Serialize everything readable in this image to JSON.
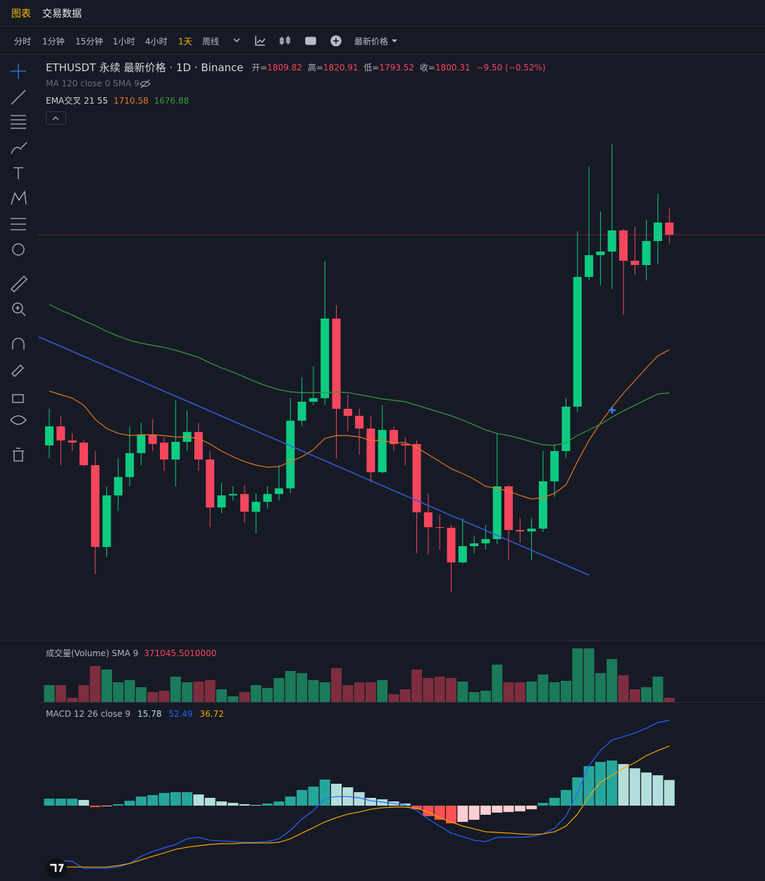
{
  "ui": {
    "tabs": [
      "图表",
      "交易数据"
    ],
    "intervals": [
      "分时",
      "1分钟",
      "15分钟",
      "1小时",
      "4小时",
      "1天",
      "周线"
    ],
    "price_type": "最新价格"
  },
  "chart_data": [
    {
      "type": "candlestick",
      "title": "ETHUSDT 永续 最新价格 · 1D · Binance",
      "ohlc_labels": [
        "开=",
        "高=",
        "低=",
        "收="
      ],
      "change": "−9.50 (−0.52%)",
      "indicator": "MA 120 close 0 SMA 9",
      "overlay_title": "EMA交叉 21 55",
      "up_color": "#0ecb81",
      "down_color": "#f6465d",
      "ylim": [
        1484.1,
        1939.5
      ],
      "last_price_line": true,
      "open": [
        1635.9,
        1650.8,
        1639.8,
        1638.1,
        1620.5,
        1556.7,
        1596.9,
        1611.2,
        1629.9,
        1644.2,
        1638.1,
        1624.9,
        1638.7,
        1646.4,
        1624.9,
        1587.5,
        1596.9,
        1598.0,
        1584.2,
        1591.9,
        1598.0,
        1602.4,
        1655.2,
        1670.0,
        1672.8,
        1734.9,
        1664.5,
        1659.0,
        1649.1,
        1615.0,
        1648.0,
        1637.0,
        1637.0,
        1583.7,
        1572.1,
        1571.6,
        1544.6,
        1557.3,
        1559.5,
        1562.8,
        1604.0,
        1569.9,
        1568.8,
        1571.0,
        1607.9,
        1631.5,
        1666.2,
        1767.4,
        1784.4,
        1787.2,
        1803.7,
        1780.0,
        1776.7,
        1795.4,
        1809.82
      ],
      "high": [
        1664.5,
        1659.0,
        1645.3,
        1639.8,
        1631.5,
        1604.0,
        1626.0,
        1650.8,
        1653.5,
        1656.3,
        1642.5,
        1671.1,
        1663.4,
        1653.5,
        1631.5,
        1606.8,
        1604.0,
        1605.1,
        1598.5,
        1604.0,
        1620.5,
        1672.8,
        1689.3,
        1697.5,
        1780.0,
        1745.4,
        1675.5,
        1664.5,
        1659.0,
        1667.3,
        1650.8,
        1642.5,
        1639.8,
        1598.5,
        1582.0,
        1573.8,
        1579.3,
        1565.5,
        1573.8,
        1645.3,
        1605.1,
        1579.3,
        1579.3,
        1631.5,
        1637.0,
        1672.8,
        1803.1,
        1853.2,
        1818.5,
        1870.8,
        1804.8,
        1806.4,
        1811.9,
        1832.3,
        1820.91
      ],
      "low": [
        1626.0,
        1620.5,
        1631.5,
        1619.4,
        1535.3,
        1549.0,
        1584.8,
        1604.0,
        1620.5,
        1631.5,
        1616.1,
        1604.0,
        1631.5,
        1616.1,
        1572.1,
        1583.1,
        1593.0,
        1575.4,
        1567.2,
        1586.4,
        1593.0,
        1598.5,
        1650.8,
        1667.3,
        1667.3,
        1626.0,
        1646.9,
        1628.8,
        1606.8,
        1613.9,
        1631.5,
        1620.5,
        1551.8,
        1550.7,
        1554.5,
        1521.5,
        1543.5,
        1551.8,
        1554.5,
        1558.9,
        1546.3,
        1560.0,
        1546.3,
        1568.3,
        1595.8,
        1626.0,
        1661.8,
        1764.6,
        1760.8,
        1758.0,
        1737.7,
        1769.0,
        1764.6,
        1777.3,
        1793.52
      ],
      "close": [
        1650.8,
        1639.8,
        1638.1,
        1620.5,
        1556.7,
        1596.9,
        1611.2,
        1629.9,
        1644.2,
        1637.0,
        1624.9,
        1638.7,
        1646.4,
        1624.9,
        1587.5,
        1596.9,
        1598.0,
        1584.2,
        1591.9,
        1598.0,
        1602.4,
        1655.2,
        1670.0,
        1672.8,
        1734.9,
        1664.5,
        1659.0,
        1649.1,
        1615.0,
        1648.0,
        1637.0,
        1635.9,
        1583.7,
        1572.1,
        1571.6,
        1544.6,
        1557.3,
        1559.5,
        1562.8,
        1604.0,
        1569.9,
        1568.8,
        1571.0,
        1607.9,
        1631.5,
        1666.2,
        1767.4,
        1784.4,
        1787.2,
        1803.7,
        1780.0,
        1776.7,
        1795.4,
        1809.8,
        1800.31
      ],
      "series": [
        {
          "color": "#e8771f",
          "values": [
            1678.3,
            1675.5,
            1672.8,
            1667.3,
            1656.3,
            1649.1,
            1645.3,
            1643.6,
            1644.2,
            1644.2,
            1643.6,
            1642.5,
            1642.5,
            1641.4,
            1637.0,
            1631.5,
            1627.1,
            1623.3,
            1620.5,
            1618.9,
            1619.4,
            1623.3,
            1627.1,
            1632.6,
            1641.4,
            1643.6,
            1643.6,
            1642.5,
            1639.8,
            1639.8,
            1638.1,
            1638.1,
            1634.3,
            1628.8,
            1623.3,
            1617.8,
            1613.9,
            1609.5,
            1604.0,
            1602.4,
            1600.2,
            1596.9,
            1594.1,
            1595.2,
            1598.5,
            1605.1,
            1623.3,
            1639.8,
            1653.5,
            1665.6,
            1676.6,
            1686.5,
            1696.4,
            1705.8,
            1710.58
          ]
        },
        {
          "color": "#3c9a44",
          "values": [
            1745.9,
            1741.5,
            1737.7,
            1733.3,
            1729.4,
            1725.0,
            1721.2,
            1717.9,
            1715.7,
            1714.0,
            1712.4,
            1710.2,
            1707.4,
            1704.7,
            1700.3,
            1696.4,
            1693.1,
            1689.3,
            1685.4,
            1682.1,
            1679.4,
            1677.7,
            1677.1,
            1677.1,
            1677.1,
            1677.7,
            1677.1,
            1675.5,
            1673.9,
            1672.2,
            1671.1,
            1670.0,
            1667.3,
            1664.5,
            1661.8,
            1659.0,
            1655.7,
            1651.9,
            1648.0,
            1645.3,
            1643.6,
            1641.4,
            1638.7,
            1636.5,
            1635.9,
            1638.1,
            1643.6,
            1648.0,
            1652.4,
            1657.9,
            1662.9,
            1667.3,
            1671.7,
            1676.1,
            1676.88
          ]
        }
      ]
    },
    {
      "type": "bar",
      "title": "成交量(Volume) SMA 9",
      "sma": {
        "value": 371045.501,
        "label": "371045.5010000"
      },
      "up_color": "#1b7a5a",
      "down_color": "#7d2d3e",
      "ylim": [
        0,
        774000
      ],
      "values": [
        216000,
        216000,
        54000,
        216000,
        459000,
        414000,
        252000,
        279000,
        189000,
        126000,
        144000,
        324000,
        252000,
        261000,
        279000,
        162000,
        72000,
        126000,
        216000,
        180000,
        306000,
        396000,
        369000,
        279000,
        252000,
        432000,
        216000,
        252000,
        252000,
        279000,
        99000,
        162000,
        414000,
        306000,
        324000,
        306000,
        261000,
        126000,
        144000,
        477000,
        252000,
        252000,
        261000,
        351000,
        252000,
        270000,
        684000,
        684000,
        369000,
        549000,
        342000,
        162000,
        189000,
        324000,
        54000
      ]
    },
    {
      "type": "macd",
      "title": "MACD 12 26 close 9",
      "ylim": [
        -46.4,
        62.1
      ],
      "histogram": {
        "colors": {
          "up_rise": "#26a69a",
          "up_fall": "#b2dfdb",
          "down_fall": "#ff5252",
          "down_rise": "#ffcdd2"
        },
        "values": [
          4.3,
          4.3,
          4.3,
          3.5,
          -0.9,
          -0.4,
          0.9,
          3.0,
          5.6,
          6.5,
          7.8,
          8.3,
          8.3,
          6.9,
          4.8,
          2.6,
          1.7,
          0.9,
          0.4,
          1.3,
          2.6,
          5.6,
          9.6,
          11.7,
          16.1,
          13.5,
          11.3,
          8.3,
          4.8,
          3.9,
          2.6,
          1.3,
          -2.2,
          -6.5,
          -8.7,
          -10.9,
          -10.0,
          -8.7,
          -5.6,
          -4.3,
          -3.9,
          -3.5,
          -2.2,
          1.7,
          4.8,
          9.6,
          17.4,
          24.3,
          26.9,
          27.8,
          25.6,
          23.0,
          20.4,
          18.7,
          15.78
        ]
      },
      "series": [
        {
          "color": "#2962ff",
          "values": [
            -34.3,
            -33.9,
            -34.3,
            -38.6,
            -38.6,
            -38.6,
            -37.8,
            -35.6,
            -31.2,
            -28.2,
            -26.0,
            -23.9,
            -20.4,
            -19.5,
            -21.3,
            -21.7,
            -22.1,
            -22.6,
            -22.6,
            -22.1,
            -20.4,
            -15.2,
            -8.2,
            -3.0,
            4.3,
            5.6,
            5.6,
            4.8,
            3.0,
            2.2,
            1.3,
            0.4,
            -3.0,
            -8.2,
            -12.6,
            -16.9,
            -19.1,
            -21.3,
            -22.1,
            -19.5,
            -19.5,
            -19.5,
            -19.1,
            -17.4,
            -13.9,
            -6.5,
            7.8,
            24.7,
            33.9,
            40.4,
            42.5,
            44.7,
            47.7,
            51.2,
            52.49
          ]
        },
        {
          "color": "#f7a600",
          "values": [
            -38.6,
            -37.8,
            -37.8,
            -37.8,
            -37.8,
            -37.8,
            -36.9,
            -35.6,
            -33.4,
            -31.2,
            -29.1,
            -26.9,
            -25.6,
            -24.7,
            -23.9,
            -23.4,
            -23.4,
            -23.0,
            -23.0,
            -23.0,
            -22.6,
            -20.4,
            -16.9,
            -13.5,
            -10.0,
            -7.4,
            -5.2,
            -3.9,
            -2.2,
            -1.3,
            -0.9,
            -0.9,
            -1.7,
            -3.9,
            -7.4,
            -10.0,
            -12.6,
            -14.3,
            -16.1,
            -16.5,
            -16.9,
            -17.4,
            -17.8,
            -17.4,
            -16.1,
            -12.6,
            -5.2,
            5.6,
            14.3,
            18.7,
            23.0,
            26.5,
            30.8,
            33.9,
            36.72
          ]
        }
      ]
    }
  ]
}
